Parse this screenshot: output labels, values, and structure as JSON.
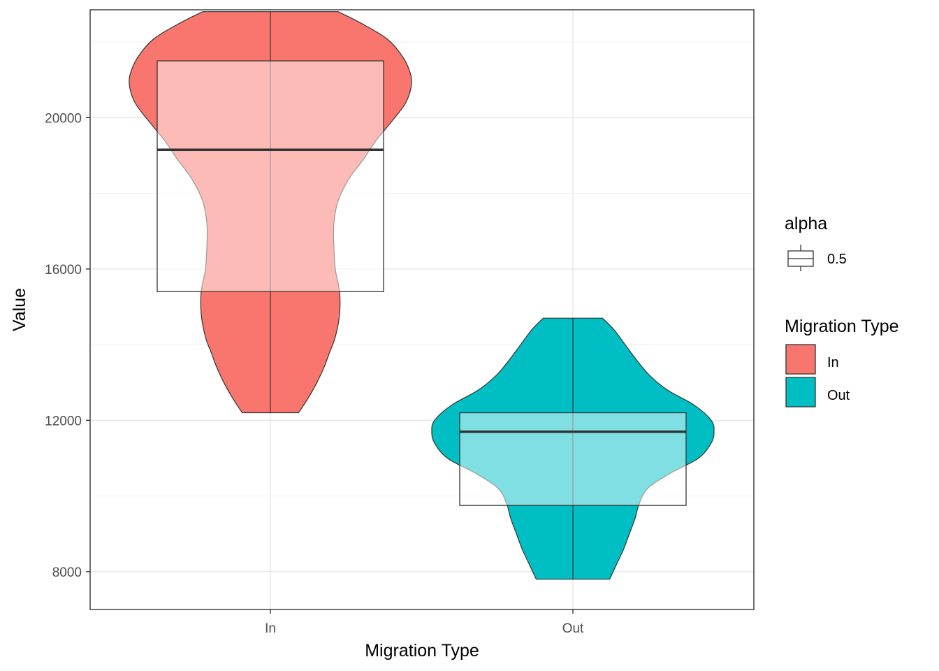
{
  "chart_data": {
    "type": "violin",
    "xlabel": "Migration Type",
    "ylabel": "Value",
    "categories": [
      "In",
      "Out"
    ],
    "ylim": [
      7000,
      22850
    ],
    "yticks": [
      8000,
      12000,
      16000,
      20000
    ],
    "grid": true,
    "legend_placement": "right",
    "series": [
      {
        "name": "In",
        "color": "#F8766D",
        "min": 12200,
        "q1": 15400,
        "median": 19150,
        "q3": 21500,
        "max": 22800,
        "density": [
          [
            12200,
            0.2
          ],
          [
            12600,
            0.27
          ],
          [
            13000,
            0.33
          ],
          [
            13400,
            0.38
          ],
          [
            13800,
            0.42
          ],
          [
            14200,
            0.46
          ],
          [
            14800,
            0.49
          ],
          [
            15400,
            0.49
          ],
          [
            16000,
            0.46
          ],
          [
            16600,
            0.45
          ],
          [
            17200,
            0.45
          ],
          [
            17800,
            0.48
          ],
          [
            18400,
            0.56
          ],
          [
            18900,
            0.66
          ],
          [
            19400,
            0.75
          ],
          [
            19900,
            0.86
          ],
          [
            20400,
            0.96
          ],
          [
            20900,
            1.0
          ],
          [
            21300,
            0.98
          ],
          [
            21700,
            0.92
          ],
          [
            22100,
            0.82
          ],
          [
            22500,
            0.64
          ],
          [
            22800,
            0.48
          ]
        ]
      },
      {
        "name": "Out",
        "color": "#00BFC4",
        "min": 7800,
        "q1": 9750,
        "median": 11700,
        "q3": 12200,
        "max": 14700,
        "density": [
          [
            7800,
            0.26
          ],
          [
            8200,
            0.31
          ],
          [
            8600,
            0.36
          ],
          [
            9000,
            0.4
          ],
          [
            9400,
            0.44
          ],
          [
            9800,
            0.47
          ],
          [
            10200,
            0.53
          ],
          [
            10600,
            0.69
          ],
          [
            11000,
            0.89
          ],
          [
            11400,
            0.98
          ],
          [
            11700,
            1.0
          ],
          [
            12000,
            0.98
          ],
          [
            12400,
            0.86
          ],
          [
            12800,
            0.67
          ],
          [
            13200,
            0.54
          ],
          [
            13600,
            0.45
          ],
          [
            14000,
            0.37
          ],
          [
            14400,
            0.29
          ],
          [
            14700,
            0.21
          ]
        ]
      }
    ],
    "legends": [
      {
        "title": "alpha",
        "entries": [
          {
            "label": "0.5",
            "key": "box"
          }
        ]
      },
      {
        "title": "Migration Type",
        "entries": [
          {
            "label": "In",
            "color": "#F8766D"
          },
          {
            "label": "Out",
            "color": "#00BFC4"
          }
        ]
      }
    ]
  }
}
